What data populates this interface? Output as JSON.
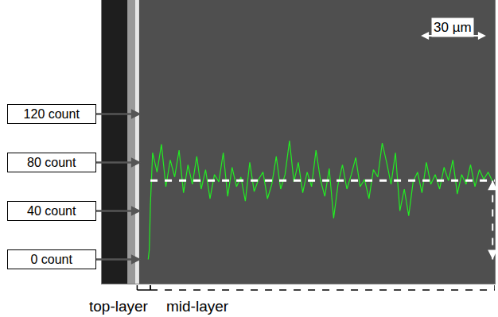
{
  "chart_data": {
    "type": "line",
    "x": [
      21,
      21.5,
      22,
      23,
      25,
      27,
      29,
      31,
      33,
      35,
      37,
      39,
      41,
      43,
      45,
      47,
      49,
      51,
      53,
      55,
      57,
      59,
      61,
      63,
      65,
      67,
      69,
      71,
      73,
      75,
      77,
      79,
      81,
      83,
      85,
      87,
      89,
      91,
      93,
      95,
      97,
      99,
      101,
      103,
      105,
      107,
      109,
      111,
      113,
      115,
      117,
      119,
      121,
      123,
      125,
      127,
      129,
      131,
      133,
      135,
      137,
      139,
      141,
      143,
      145,
      147,
      149,
      151,
      153,
      155,
      157,
      159,
      161,
      163,
      165,
      167,
      169,
      171,
      173,
      175,
      177
    ],
    "values": [
      0,
      8,
      45,
      88,
      72,
      95,
      60,
      82,
      68,
      90,
      55,
      78,
      62,
      85,
      58,
      74,
      50,
      70,
      64,
      88,
      52,
      76,
      60,
      68,
      48,
      80,
      56,
      66,
      72,
      50,
      62,
      85,
      58,
      70,
      98,
      64,
      80,
      55,
      72,
      60,
      90,
      66,
      52,
      75,
      34,
      62,
      78,
      58,
      70,
      84,
      60,
      66,
      50,
      74,
      68,
      96,
      80,
      62,
      88,
      40,
      58,
      36,
      64,
      72,
      55,
      80,
      62,
      70,
      58,
      76,
      65,
      82,
      54,
      70,
      62,
      78,
      60,
      74,
      66,
      72,
      64
    ],
    "color": "#22ee22",
    "xlim": [
      0,
      178
    ],
    "ylim": [
      -20,
      214
    ],
    "yticks": [
      {
        "value": 0,
        "label": "0 count"
      },
      {
        "value": 40,
        "label": "40 count"
      },
      {
        "value": 80,
        "label": "80 count"
      },
      {
        "value": 120,
        "label": "120 count"
      }
    ],
    "tick_labels": "y",
    "grid": false,
    "level_line": 65,
    "scale_bar": {
      "label": "30 µm",
      "length": 30
    },
    "layers": [
      {
        "label": "top-layer",
        "from": 16,
        "to": 22
      },
      {
        "label": "mid-layer",
        "from": 22,
        "to": 178
      }
    ]
  }
}
